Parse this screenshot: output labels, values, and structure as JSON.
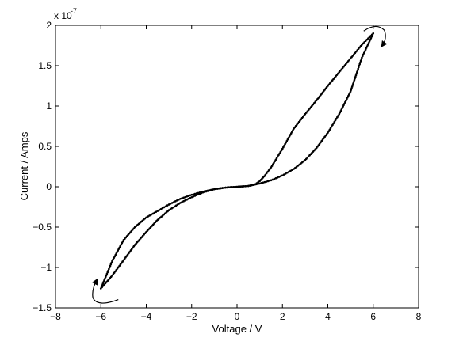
{
  "chart_data": {
    "type": "line",
    "title": "",
    "xlabel": "Voltage / V",
    "ylabel": "Current / Amps",
    "y_exponent_label": "x 10",
    "y_exponent_power": "-7",
    "xlim": [
      -8,
      8
    ],
    "ylim": [
      -1.5,
      2
    ],
    "x_ticks": [
      -8,
      -6,
      -4,
      -2,
      0,
      2,
      4,
      6,
      8
    ],
    "x_tick_labels": [
      "−8",
      "−6",
      "−4",
      "−2",
      "0",
      "2",
      "4",
      "6",
      "8"
    ],
    "y_ticks": [
      -1.5,
      -1,
      -0.5,
      0,
      0.5,
      1,
      1.5,
      2
    ],
    "y_tick_labels": [
      "−1.5",
      "−1",
      "−0.5",
      "0",
      "0.5",
      "1",
      "1.5",
      "2"
    ],
    "grid": false,
    "legend": "none",
    "series": [
      {
        "x": [
          0,
          0.5,
          0.8,
          1.0,
          1.2,
          1.5,
          2.0,
          2.5,
          3.0,
          3.5,
          4.0,
          4.5,
          5.0,
          5.5,
          6.0
        ],
        "y": [
          0,
          0.01,
          0.03,
          0.07,
          0.13,
          0.24,
          0.47,
          0.72,
          0.9,
          1.07,
          1.25,
          1.42,
          1.59,
          1.76,
          1.9
        ]
      },
      {
        "x": [
          6.0,
          5.5,
          5.0,
          4.5,
          4.0,
          3.5,
          3.0,
          2.5,
          2.0,
          1.5,
          1.0,
          0.5,
          0
        ],
        "y": [
          1.9,
          1.6,
          1.18,
          0.9,
          0.67,
          0.48,
          0.33,
          0.22,
          0.14,
          0.08,
          0.04,
          0.01,
          0
        ]
      },
      {
        "x": [
          0,
          -0.5,
          -1.0,
          -1.5,
          -2.0,
          -2.5,
          -3.0,
          -3.5,
          -4.0,
          -4.5,
          -5.0,
          -5.5,
          -6.0
        ],
        "y": [
          0,
          -0.01,
          -0.03,
          -0.06,
          -0.1,
          -0.15,
          -0.22,
          -0.3,
          -0.38,
          -0.5,
          -0.66,
          -0.92,
          -1.26
        ]
      },
      {
        "x": [
          -6.0,
          -5.5,
          -5.0,
          -4.5,
          -4.0,
          -3.5,
          -3.0,
          -2.5,
          -2.0,
          -1.5,
          -1.0,
          -0.5,
          0
        ],
        "y": [
          -1.26,
          -1.1,
          -0.91,
          -0.72,
          -0.56,
          -0.41,
          -0.29,
          -0.2,
          -0.13,
          -0.07,
          -0.03,
          -0.01,
          0
        ]
      }
    ]
  }
}
